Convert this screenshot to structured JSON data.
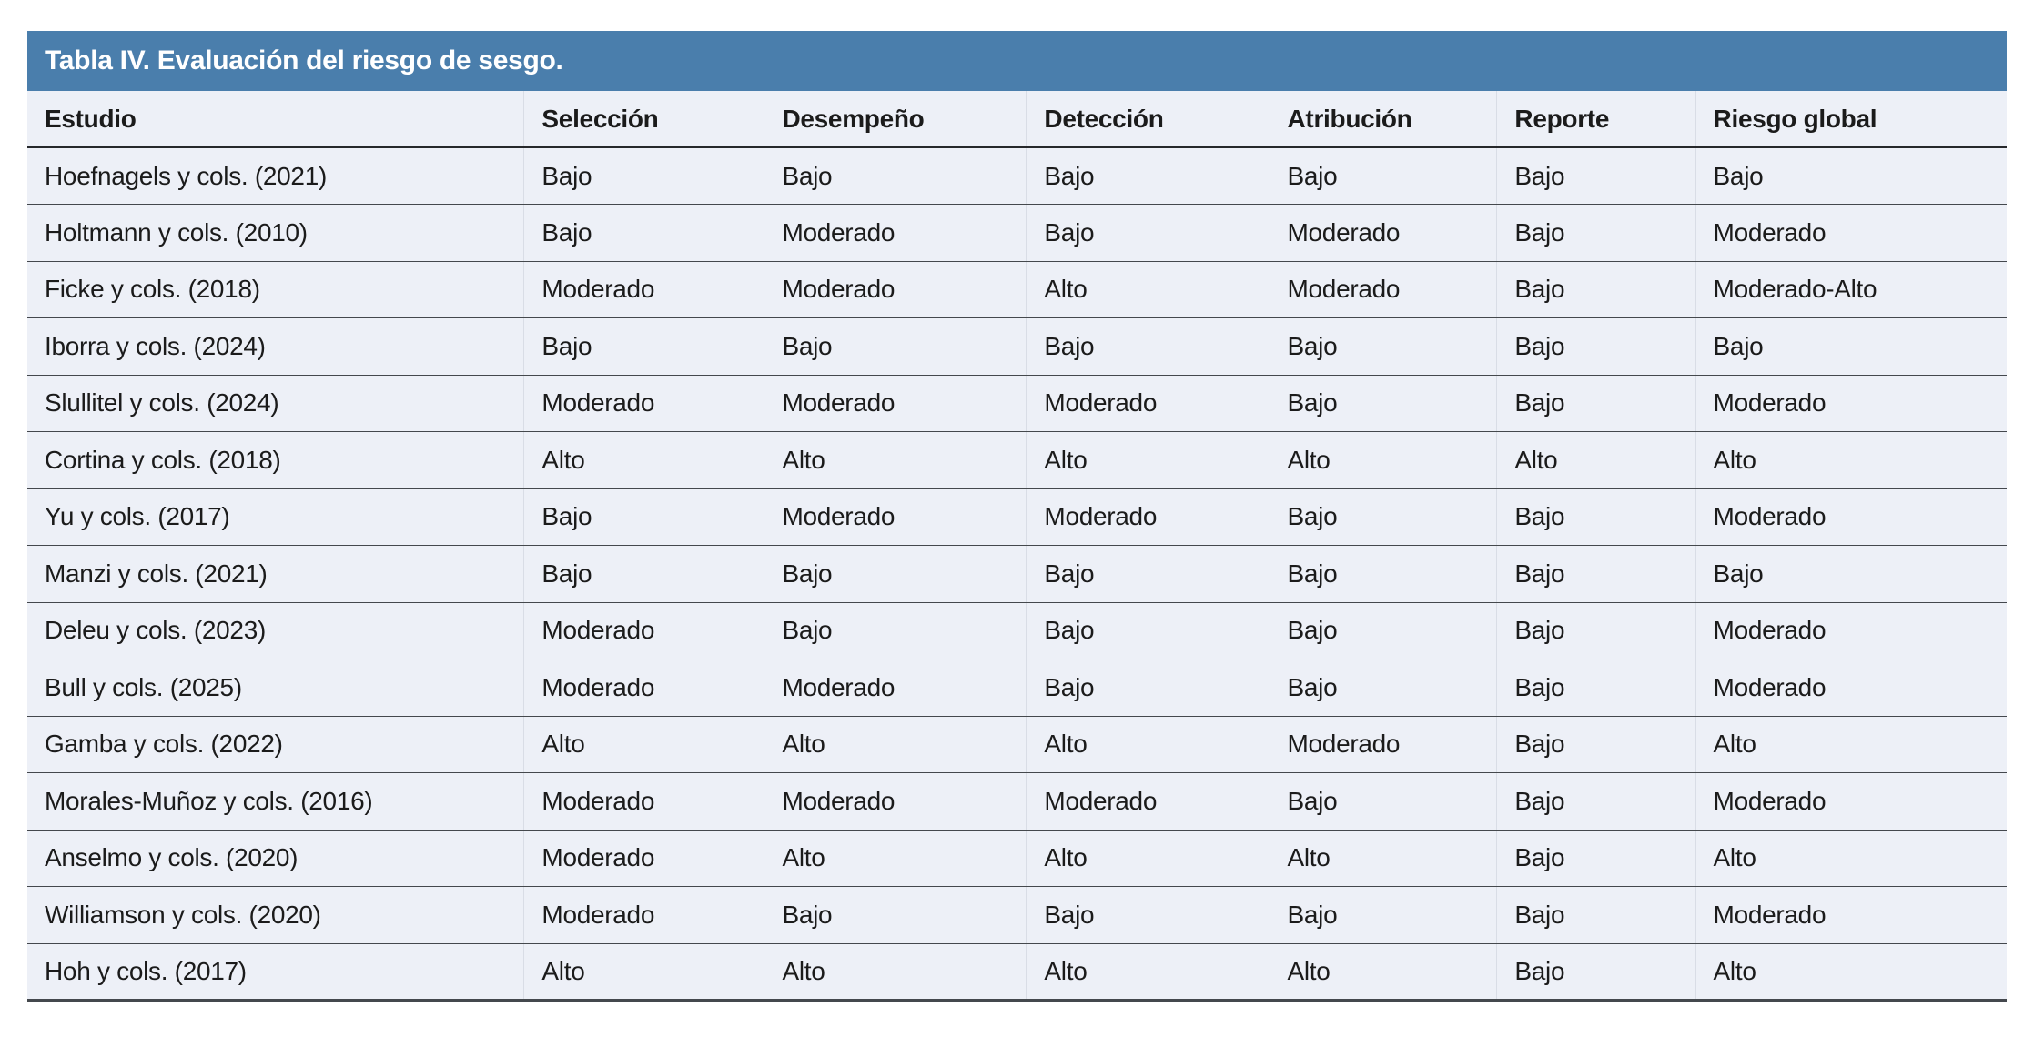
{
  "table": {
    "title": "Tabla IV. Evaluación del riesgo de sesgo.",
    "columns": [
      "Estudio",
      "Selección",
      "Desempeño",
      "Detección",
      "Atribución",
      "Reporte",
      "Riesgo global"
    ],
    "rows": [
      [
        "Hoefnagels y cols. (2021)",
        "Bajo",
        "Bajo",
        "Bajo",
        "Bajo",
        "Bajo",
        "Bajo"
      ],
      [
        "Holtmann y cols. (2010)",
        "Bajo",
        "Moderado",
        "Bajo",
        "Moderado",
        "Bajo",
        "Moderado"
      ],
      [
        "Ficke y cols. (2018)",
        "Moderado",
        "Moderado",
        "Alto",
        "Moderado",
        "Bajo",
        "Moderado-Alto"
      ],
      [
        "Iborra y cols. (2024)",
        "Bajo",
        "Bajo",
        "Bajo",
        "Bajo",
        "Bajo",
        "Bajo"
      ],
      [
        "Slullitel y cols. (2024)",
        "Moderado",
        "Moderado",
        "Moderado",
        "Bajo",
        "Bajo",
        "Moderado"
      ],
      [
        "Cortina y cols. (2018)",
        "Alto",
        "Alto",
        "Alto",
        "Alto",
        "Alto",
        "Alto"
      ],
      [
        "Yu y cols. (2017)",
        "Bajo",
        "Moderado",
        "Moderado",
        "Bajo",
        "Bajo",
        "Moderado"
      ],
      [
        "Manzi y cols. (2021)",
        "Bajo",
        "Bajo",
        "Bajo",
        "Bajo",
        "Bajo",
        "Bajo"
      ],
      [
        "Deleu y cols. (2023)",
        "Moderado",
        "Bajo",
        "Bajo",
        "Bajo",
        "Bajo",
        "Moderado"
      ],
      [
        "Bull y cols. (2025)",
        "Moderado",
        "Moderado",
        "Bajo",
        "Bajo",
        "Bajo",
        "Moderado"
      ],
      [
        "Gamba y cols. (2022)",
        "Alto",
        "Alto",
        "Alto",
        "Moderado",
        "Bajo",
        "Alto"
      ],
      [
        "Morales-Muñoz y cols. (2016)",
        "Moderado",
        "Moderado",
        "Moderado",
        "Bajo",
        "Bajo",
        "Moderado"
      ],
      [
        "Anselmo y cols. (2020)",
        "Moderado",
        "Alto",
        "Alto",
        "Alto",
        "Bajo",
        "Alto"
      ],
      [
        "Williamson y cols. (2020)",
        "Moderado",
        "Bajo",
        "Bajo",
        "Bajo",
        "Bajo",
        "Moderado"
      ],
      [
        "Hoh y cols. (2017)",
        "Alto",
        "Alto",
        "Alto",
        "Alto",
        "Bajo",
        "Alto"
      ]
    ]
  },
  "colors": {
    "title_bar_bg": "#4A7EAC",
    "title_text": "#FFFFFF",
    "row_bg": "#EDF0F7",
    "separator_dark": "#44484D",
    "separator_light": "#D9DDE6",
    "body_text": "#1B1B1B"
  }
}
